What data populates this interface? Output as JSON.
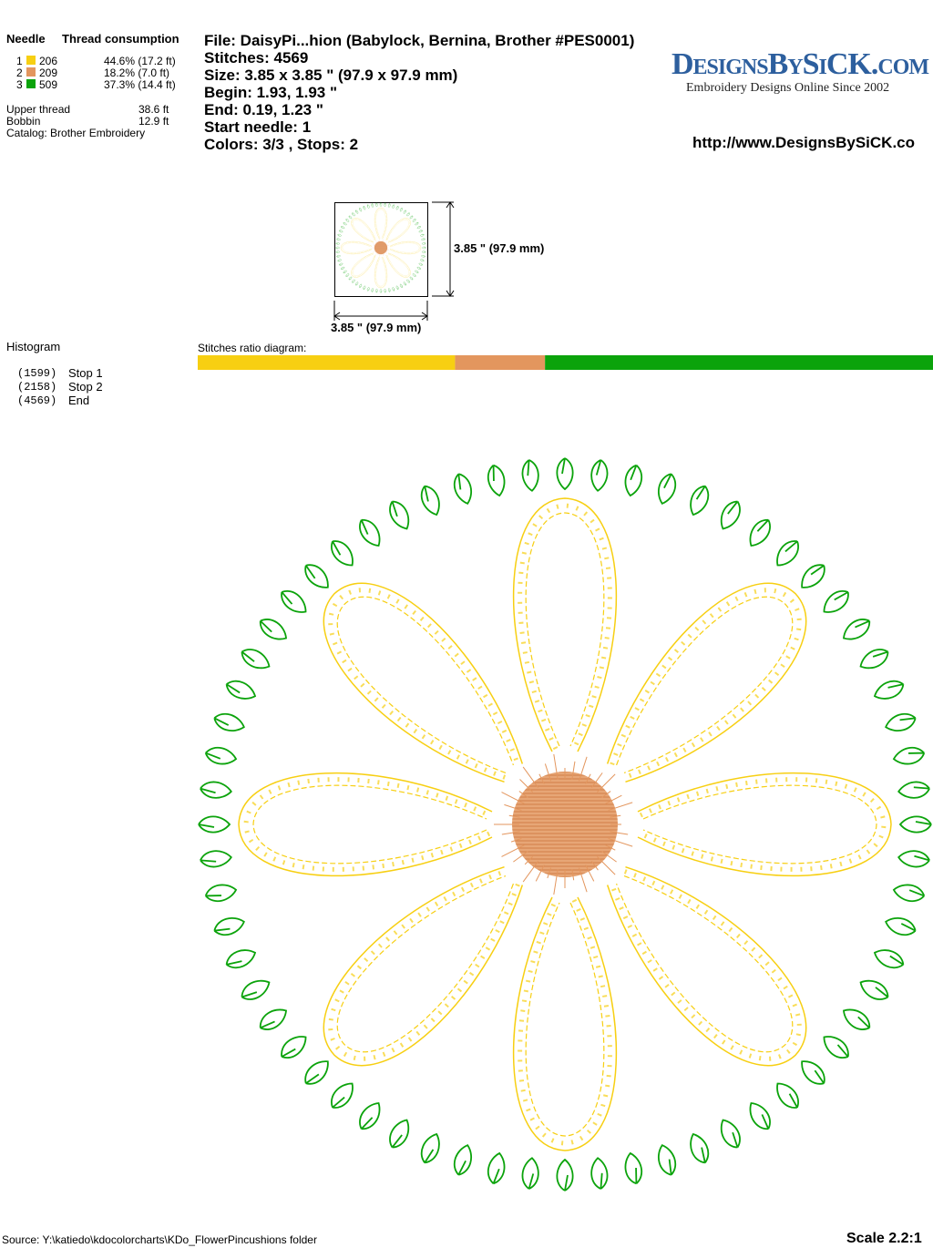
{
  "thread_table": {
    "header": {
      "needle": "Needle",
      "consumption": "Thread consumption"
    },
    "threads": [
      {
        "needle": "1",
        "code": "206",
        "usage": "44.6% (17.2 ft)",
        "color": "#f7cf12"
      },
      {
        "needle": "2",
        "code": "209",
        "usage": "18.2% (7.0 ft)",
        "color": "#e3965e"
      },
      {
        "needle": "3",
        "code": "509",
        "usage": "37.3% (14.4 ft)",
        "color": "#0ba30b"
      }
    ],
    "upper_thread": {
      "label": "Upper thread",
      "value": "38.6 ft"
    },
    "bobbin": {
      "label": "Bobbin",
      "value": "12.9 ft"
    },
    "catalog": "Catalog: Brother Embroidery"
  },
  "info": [
    "File: DaisyPi...hion  (Babylock, Bernina, Brother #PES0001)",
    "Stitches: 4569",
    "Size: 3.85 x 3.85 \" (97.9 x 97.9 mm)",
    "Begin: 1.93, 1.93 \"",
    "End: 0.19, 1.23 \"",
    "Start needle: 1",
    "Colors: 3/3 , Stops: 2"
  ],
  "logo": {
    "name": "DesignsBySiCK.com",
    "tagline": "Embroidery Designs Online Since 2002",
    "url": "http://www.DesignsBySiCK.co"
  },
  "preview": {
    "height_label": "3.85 \" (97.9 mm)",
    "width_label": "3.85 \" (97.9 mm)"
  },
  "histogram": {
    "title": "Histogram",
    "stops": [
      {
        "count": 1599,
        "count_label": "(1599)",
        "label": "Stop 1"
      },
      {
        "count": 2158,
        "count_label": "(2158)",
        "label": "Stop 2"
      },
      {
        "count": 4569,
        "count_label": "(4569)",
        "label": "End"
      }
    ]
  },
  "ratio_diagram": {
    "title": "Stitches ratio diagram:"
  },
  "footer": {
    "source": "Source: Y:\\katiedo\\kdocolorcharts\\KDo_FlowerPincushions folder",
    "scale": "Scale 2.2:1"
  }
}
